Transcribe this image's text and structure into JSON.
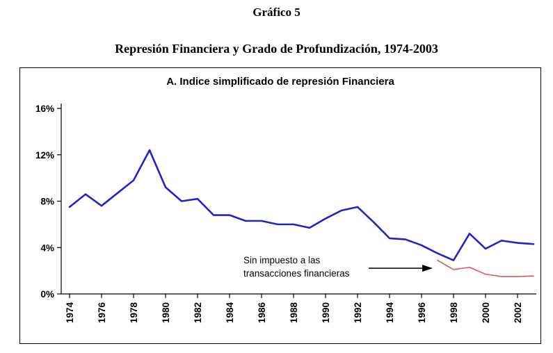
{
  "page": {
    "title1": "Gráfico 5",
    "title2": "Represión Financiera y Grado de Profundización, 1974-2003"
  },
  "chart_data": {
    "type": "line",
    "title": "A. Indice simplificado de represión Financiera",
    "xlabel": "",
    "ylabel": "",
    "ylim": [
      0,
      16
    ],
    "grid": false,
    "yticks": [
      {
        "v": 0,
        "label": "0%"
      },
      {
        "v": 4,
        "label": "4%"
      },
      {
        "v": 8,
        "label": "8%"
      },
      {
        "v": 12,
        "label": "12%"
      },
      {
        "v": 16,
        "label": "16%"
      }
    ],
    "x": [
      1974,
      1975,
      1976,
      1977,
      1978,
      1979,
      1980,
      1981,
      1982,
      1983,
      1984,
      1985,
      1986,
      1987,
      1988,
      1989,
      1990,
      1991,
      1992,
      1993,
      1994,
      1995,
      1996,
      1997,
      1998,
      1999,
      2000,
      2001,
      2002,
      2003
    ],
    "xtick_labels": [
      "1974",
      "1976",
      "1978",
      "1980",
      "1982",
      "1984",
      "1986",
      "1988",
      "1990",
      "1992",
      "1994",
      "1996",
      "1998",
      "2000",
      "2002"
    ],
    "xtick_years": [
      1974,
      1976,
      1978,
      1980,
      1982,
      1984,
      1986,
      1988,
      1990,
      1992,
      1994,
      1996,
      1998,
      2000,
      2002
    ],
    "series": [
      {
        "id": "blue-line",
        "color": "#2222CC",
        "values": [
          7.5,
          8.6,
          7.6,
          8.7,
          9.8,
          12.4,
          9.2,
          8.0,
          8.2,
          6.8,
          6.8,
          6.3,
          6.3,
          6.0,
          6.0,
          5.7,
          6.5,
          7.2,
          7.5,
          6.2,
          4.8,
          4.7,
          4.2,
          3.5,
          2.9,
          5.2,
          3.9,
          4.6,
          4.4,
          4.3
        ]
      },
      {
        "id": "red-line",
        "color": "#E0584A",
        "values": [
          null,
          null,
          null,
          null,
          null,
          null,
          null,
          null,
          null,
          null,
          null,
          null,
          null,
          null,
          null,
          null,
          null,
          null,
          null,
          null,
          null,
          null,
          null,
          2.9,
          2.1,
          2.3,
          1.7,
          1.5,
          1.5,
          1.55
        ]
      }
    ],
    "annotation": {
      "lines": [
        "Sin impuesto a las",
        "transacciones financieras"
      ],
      "target_series": "red-line"
    }
  }
}
